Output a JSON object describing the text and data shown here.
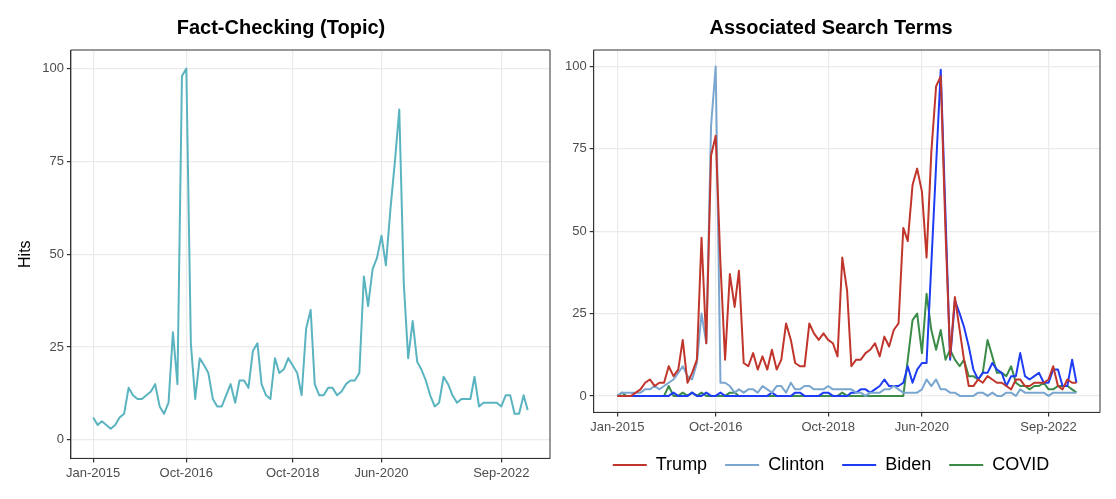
{
  "chart_data": [
    {
      "type": "line",
      "title": "Fact-Checking (Topic)",
      "ylabel": "Hits",
      "grid": true,
      "legend": false,
      "marker": "none",
      "x": [
        "2015-01",
        "2015-02",
        "2015-03",
        "2015-04",
        "2015-05",
        "2015-06",
        "2015-07",
        "2015-08",
        "2015-09",
        "2015-10",
        "2015-11",
        "2015-12",
        "2016-01",
        "2016-02",
        "2016-03",
        "2016-04",
        "2016-05",
        "2016-06",
        "2016-07",
        "2016-08",
        "2016-09",
        "2016-10",
        "2016-11",
        "2016-12",
        "2017-01",
        "2017-02",
        "2017-03",
        "2017-04",
        "2017-05",
        "2017-06",
        "2017-07",
        "2017-08",
        "2017-09",
        "2017-10",
        "2017-11",
        "2017-12",
        "2018-01",
        "2018-02",
        "2018-03",
        "2018-04",
        "2018-05",
        "2018-06",
        "2018-07",
        "2018-08",
        "2018-09",
        "2018-10",
        "2018-11",
        "2018-12",
        "2019-01",
        "2019-02",
        "2019-03",
        "2019-04",
        "2019-05",
        "2019-06",
        "2019-07",
        "2019-08",
        "2019-09",
        "2019-10",
        "2019-11",
        "2019-12",
        "2020-01",
        "2020-02",
        "2020-03",
        "2020-04",
        "2020-05",
        "2020-06",
        "2020-07",
        "2020-08",
        "2020-09",
        "2020-10",
        "2020-11",
        "2020-12",
        "2021-01",
        "2021-02",
        "2021-03",
        "2021-04",
        "2021-05",
        "2021-06",
        "2021-07",
        "2021-08",
        "2021-09",
        "2021-10",
        "2021-11",
        "2021-12",
        "2022-01",
        "2022-02",
        "2022-03",
        "2022-04",
        "2022-05",
        "2022-06",
        "2022-07",
        "2022-08",
        "2022-09",
        "2022-10",
        "2022-11",
        "2022-12",
        "2023-01",
        "2023-02",
        "2023-03"
      ],
      "series": [
        {
          "color": "#5ab4c0",
          "values": [
            6,
            4,
            5,
            4,
            3,
            4,
            6,
            7,
            14,
            12,
            11,
            11,
            12,
            13,
            15,
            9,
            7,
            10,
            29,
            15,
            98,
            100,
            26,
            11,
            22,
            20,
            18,
            11,
            9,
            9,
            12,
            15,
            10,
            16,
            16,
            14,
            24,
            26,
            15,
            12,
            11,
            22,
            18,
            19,
            22,
            20,
            18,
            12,
            30,
            35,
            15,
            12,
            12,
            14,
            14,
            12,
            13,
            15,
            16,
            16,
            18,
            44,
            36,
            46,
            49,
            55,
            47,
            62,
            75,
            89,
            42,
            22,
            32,
            21,
            19,
            16,
            12,
            9,
            10,
            17,
            15,
            12,
            10,
            11,
            11,
            11,
            17,
            9,
            10,
            10,
            10,
            10,
            9,
            12,
            12,
            7,
            7,
            12,
            8
          ]
        }
      ],
      "xlim": [
        "2014-08",
        "2023-08"
      ],
      "xticks": [
        {
          "value": "2015-01",
          "label": "Jan-2015"
        },
        {
          "value": "2016-10",
          "label": "Oct-2016"
        },
        {
          "value": "2018-10",
          "label": "Oct-2018"
        },
        {
          "value": "2020-06",
          "label": "Jun-2020"
        },
        {
          "value": "2022-09",
          "label": "Sep-2022"
        }
      ],
      "ylim": [
        -5,
        105
      ],
      "yticks": [
        0,
        25,
        50,
        75,
        100
      ]
    },
    {
      "type": "line",
      "title": "Associated Search Terms",
      "grid": true,
      "legend": "bottom",
      "marker": "none",
      "x": [
        "2015-01",
        "2015-02",
        "2015-03",
        "2015-04",
        "2015-05",
        "2015-06",
        "2015-07",
        "2015-08",
        "2015-09",
        "2015-10",
        "2015-11",
        "2015-12",
        "2016-01",
        "2016-02",
        "2016-03",
        "2016-04",
        "2016-05",
        "2016-06",
        "2016-07",
        "2016-08",
        "2016-09",
        "2016-10",
        "2016-11",
        "2016-12",
        "2017-01",
        "2017-02",
        "2017-03",
        "2017-04",
        "2017-05",
        "2017-06",
        "2017-07",
        "2017-08",
        "2017-09",
        "2017-10",
        "2017-11",
        "2017-12",
        "2018-01",
        "2018-02",
        "2018-03",
        "2018-04",
        "2018-05",
        "2018-06",
        "2018-07",
        "2018-08",
        "2018-09",
        "2018-10",
        "2018-11",
        "2018-12",
        "2019-01",
        "2019-02",
        "2019-03",
        "2019-04",
        "2019-05",
        "2019-06",
        "2019-07",
        "2019-08",
        "2019-09",
        "2019-10",
        "2019-11",
        "2019-12",
        "2020-01",
        "2020-02",
        "2020-03",
        "2020-04",
        "2020-05",
        "2020-06",
        "2020-07",
        "2020-08",
        "2020-09",
        "2020-10",
        "2020-11",
        "2020-12",
        "2021-01",
        "2021-02",
        "2021-03",
        "2021-04",
        "2021-05",
        "2021-06",
        "2021-07",
        "2021-08",
        "2021-09",
        "2021-10",
        "2021-11",
        "2021-12",
        "2022-01",
        "2022-02",
        "2022-03",
        "2022-04",
        "2022-05",
        "2022-06",
        "2022-07",
        "2022-08",
        "2022-09",
        "2022-10",
        "2022-11",
        "2022-12",
        "2023-01",
        "2023-02",
        "2023-03"
      ],
      "series": [
        {
          "name": "Trump",
          "color": "#c0362c",
          "values": [
            0,
            0,
            0,
            0,
            1,
            2,
            4,
            5,
            3,
            4,
            4,
            9,
            6,
            8,
            17,
            4,
            7,
            11,
            48,
            16,
            73,
            79,
            40,
            11,
            37,
            27,
            38,
            10,
            9,
            13,
            8,
            12,
            8,
            14,
            8,
            11,
            22,
            17,
            10,
            9,
            9,
            22,
            19,
            17,
            19,
            17,
            16,
            12,
            42,
            32,
            9,
            11,
            11,
            13,
            14,
            16,
            12,
            18,
            15,
            20,
            22,
            51,
            47,
            64,
            69,
            62,
            42,
            74,
            94,
            97,
            50,
            12,
            30,
            20,
            11,
            3,
            3,
            5,
            4,
            6,
            5,
            4,
            4,
            3,
            2,
            5,
            5,
            3,
            3,
            4,
            4,
            4,
            5,
            9,
            3,
            2,
            5,
            4,
            4
          ]
        },
        {
          "name": "Clinton",
          "color": "#7aa6cf",
          "values": [
            0,
            1,
            1,
            1,
            1,
            1,
            2,
            2,
            3,
            2,
            3,
            4,
            5,
            7,
            9,
            6,
            5,
            10,
            25,
            16,
            82,
            100,
            4,
            4,
            3,
            1,
            2,
            1,
            2,
            2,
            1,
            3,
            2,
            1,
            3,
            3,
            1,
            4,
            2,
            2,
            3,
            3,
            2,
            2,
            2,
            3,
            2,
            2,
            2,
            2,
            2,
            1,
            1,
            0,
            1,
            1,
            1,
            2,
            2,
            3,
            2,
            1,
            1,
            1,
            1,
            2,
            5,
            3,
            5,
            2,
            2,
            1,
            1,
            0,
            0,
            0,
            0,
            1,
            1,
            0,
            1,
            0,
            0,
            1,
            1,
            0,
            2,
            1,
            1,
            1,
            1,
            1,
            0,
            1,
            1,
            1,
            1,
            1,
            1
          ]
        },
        {
          "name": "Biden",
          "color": "#1f3cf5",
          "values": [
            null,
            null,
            0,
            0,
            0,
            0,
            0,
            0,
            0,
            0,
            0,
            0,
            1,
            0,
            0,
            0,
            1,
            0,
            0,
            1,
            0,
            0,
            1,
            0,
            0,
            0,
            0,
            0,
            0,
            0,
            0,
            0,
            0,
            1,
            0,
            0,
            0,
            0,
            1,
            1,
            0,
            0,
            0,
            0,
            1,
            1,
            0,
            0,
            0,
            0,
            1,
            1,
            2,
            2,
            1,
            2,
            3,
            5,
            3,
            3,
            3,
            4,
            9,
            4,
            8,
            10,
            10,
            40,
            70,
            99,
            55,
            11,
            29,
            25,
            21,
            15,
            8,
            5,
            7,
            7,
            10,
            8,
            7,
            3,
            6,
            6,
            13,
            6,
            5,
            6,
            7,
            4,
            4,
            8,
            8,
            3,
            3,
            11,
            4
          ]
        },
        {
          "name": "COVID",
          "color": "#3a8c48",
          "values": [
            0,
            1,
            0,
            0,
            0,
            0,
            0,
            0,
            0,
            0,
            0,
            3,
            0,
            0,
            1,
            0,
            1,
            0,
            1,
            0,
            0,
            0,
            0,
            0,
            1,
            1,
            0,
            0,
            0,
            0,
            0,
            0,
            0,
            0,
            0,
            0,
            0,
            0,
            0,
            0,
            0,
            0,
            0,
            0,
            0,
            0,
            0,
            0,
            1,
            0,
            0,
            0,
            0,
            0,
            0,
            0,
            0,
            0,
            0,
            0,
            0,
            0,
            11,
            23,
            25,
            13,
            31,
            20,
            14,
            20,
            11,
            14,
            11,
            9,
            11,
            6,
            6,
            5,
            7,
            17,
            12,
            7,
            7,
            6,
            9,
            4,
            3,
            3,
            2,
            3,
            3,
            4,
            2,
            2,
            3,
            3,
            3,
            2,
            1
          ]
        }
      ],
      "xlim": [
        "2014-08",
        "2023-08"
      ],
      "xticks": [
        {
          "value": "2015-01",
          "label": "Jan-2015"
        },
        {
          "value": "2016-10",
          "label": "Oct-2016"
        },
        {
          "value": "2018-10",
          "label": "Oct-2018"
        },
        {
          "value": "2020-06",
          "label": "Jun-2020"
        },
        {
          "value": "2022-09",
          "label": "Sep-2022"
        }
      ],
      "ylim": [
        -5,
        105
      ],
      "yticks": [
        0,
        25,
        50,
        75,
        100
      ]
    }
  ]
}
